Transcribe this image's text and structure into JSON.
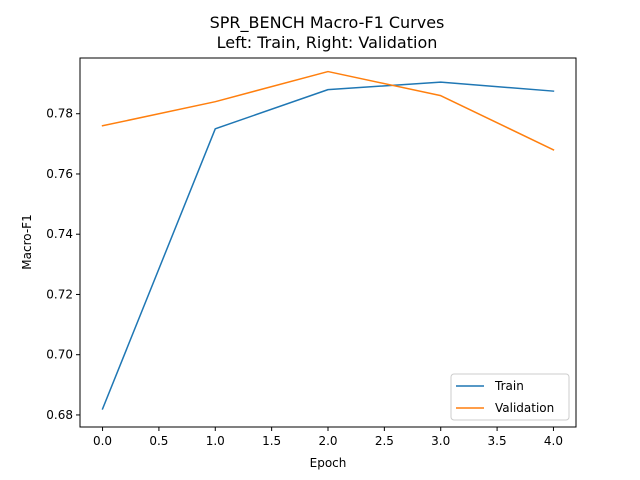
{
  "chart_data": {
    "type": "line",
    "title": "SPR_BENCH Macro-F1 Curves",
    "subtitle": "Left: Train, Right: Validation",
    "xlabel": "Epoch",
    "ylabel": "Macro-F1",
    "xlim": [
      -0.2,
      4.2
    ],
    "ylim": [
      0.676,
      0.7985
    ],
    "x_ticks": [
      "0.0",
      "0.5",
      "1.0",
      "1.5",
      "2.0",
      "2.5",
      "3.0",
      "3.5",
      "4.0"
    ],
    "y_ticks": [
      "0.68",
      "0.70",
      "0.72",
      "0.74",
      "0.76",
      "0.78"
    ],
    "x": [
      0,
      1,
      2,
      3,
      4
    ],
    "series": [
      {
        "name": "Train",
        "color": "#1f77b4",
        "values": [
          0.682,
          0.775,
          0.788,
          0.7905,
          0.7875
        ]
      },
      {
        "name": "Validation",
        "color": "#ff7f0e",
        "values": [
          0.776,
          0.784,
          0.794,
          0.786,
          0.768
        ]
      }
    ],
    "grid": false,
    "legend": "lower-right"
  }
}
